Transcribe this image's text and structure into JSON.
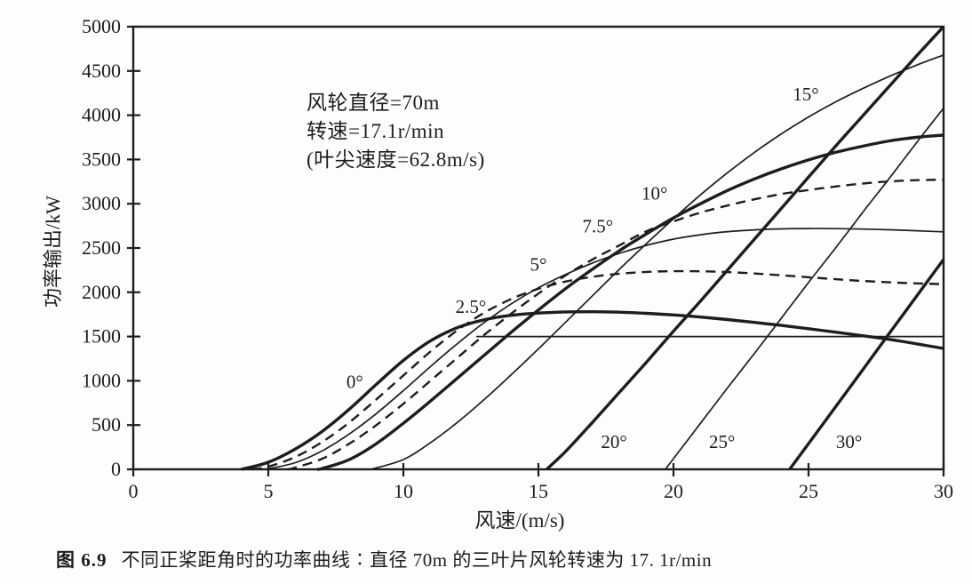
{
  "figure": {
    "caption_label": "图 6.9",
    "caption_text": "不同正桨距角时的功率曲线∶直径 70m 的三叶片风轮转速为 17. 1r/min"
  },
  "colors": {
    "ink": "#1d1d1d",
    "background": "#fdfdfc"
  },
  "chart_data": {
    "type": "line",
    "title": "",
    "xlabel": "风速/(m/s)",
    "ylabel": "功率输出/kW",
    "x_unit": "m/s",
    "y_unit": "kW",
    "xlim": [
      0,
      30
    ],
    "ylim": [
      0,
      5000
    ],
    "xticks": [
      0,
      5,
      10,
      15,
      20,
      25,
      30
    ],
    "yticks": [
      0,
      500,
      1000,
      1500,
      2000,
      2500,
      3000,
      3500,
      4000,
      4500,
      5000
    ],
    "grid": false,
    "legend": "none (curves labeled inline)",
    "annotation": {
      "lines": [
        "风轮直径=70m",
        "转速=17.1r/min",
        "(叶尖速度=62.8m/s)"
      ]
    },
    "rated_power_line": {
      "value_kw": 1500,
      "x_start": 12.7,
      "x_end": 30
    },
    "series": [
      {
        "name": "0°",
        "pitch_deg": 0,
        "style": "solid",
        "weight": "thick",
        "label": {
          "text": "0°",
          "x": 8.2,
          "y": 920
        },
        "points": [
          [
            4,
            0
          ],
          [
            5,
            80
          ],
          [
            6,
            230
          ],
          [
            7,
            430
          ],
          [
            8,
            680
          ],
          [
            9,
            960
          ],
          [
            10,
            1230
          ],
          [
            11,
            1450
          ],
          [
            12,
            1600
          ],
          [
            13,
            1690
          ],
          [
            14,
            1740
          ],
          [
            15,
            1765
          ],
          [
            16,
            1778
          ],
          [
            17,
            1780
          ],
          [
            18,
            1775
          ],
          [
            19,
            1762
          ],
          [
            20,
            1744
          ],
          [
            21,
            1720
          ],
          [
            22,
            1692
          ],
          [
            23,
            1660
          ],
          [
            24,
            1625
          ],
          [
            25,
            1588
          ],
          [
            26,
            1549
          ],
          [
            27,
            1509
          ],
          [
            28,
            1468
          ],
          [
            29,
            1418
          ],
          [
            30,
            1365
          ]
        ]
      },
      {
        "name": "2.5°",
        "pitch_deg": 2.5,
        "style": "dashed",
        "weight": "dashed",
        "label": {
          "text": "2.5°",
          "x": 12.5,
          "y": 1765
        },
        "points": [
          [
            4.4,
            0
          ],
          [
            5,
            30
          ],
          [
            6,
            140
          ],
          [
            7,
            310
          ],
          [
            8,
            530
          ],
          [
            9,
            790
          ],
          [
            10,
            1060
          ],
          [
            11,
            1330
          ],
          [
            12,
            1570
          ],
          [
            13,
            1770
          ],
          [
            14,
            1925
          ],
          [
            15,
            2040
          ],
          [
            16,
            2120
          ],
          [
            17,
            2175
          ],
          [
            18,
            2210
          ],
          [
            19,
            2230
          ],
          [
            20,
            2238
          ],
          [
            21,
            2237
          ],
          [
            22,
            2228
          ],
          [
            23,
            2212
          ],
          [
            24,
            2192
          ],
          [
            25,
            2170
          ],
          [
            26,
            2148
          ],
          [
            27,
            2128
          ],
          [
            28,
            2112
          ],
          [
            29,
            2100
          ],
          [
            30,
            2092
          ]
        ]
      },
      {
        "name": "5°",
        "pitch_deg": 5,
        "style": "solid",
        "weight": "thin",
        "label": {
          "text": "5°",
          "x": 15.0,
          "y": 2245
        },
        "points": [
          [
            4.9,
            0
          ],
          [
            6,
            75
          ],
          [
            7,
            210
          ],
          [
            8,
            400
          ],
          [
            9,
            630
          ],
          [
            10,
            890
          ],
          [
            11,
            1160
          ],
          [
            12,
            1420
          ],
          [
            13,
            1660
          ],
          [
            14,
            1870
          ],
          [
            15,
            2050
          ],
          [
            16,
            2200
          ],
          [
            17,
            2330
          ],
          [
            18,
            2440
          ],
          [
            19,
            2530
          ],
          [
            20,
            2600
          ],
          [
            21,
            2650
          ],
          [
            22,
            2685
          ],
          [
            23,
            2705
          ],
          [
            24,
            2716
          ],
          [
            25,
            2720
          ],
          [
            26,
            2719
          ],
          [
            27,
            2714
          ],
          [
            28,
            2706
          ],
          [
            29,
            2695
          ],
          [
            30,
            2683
          ]
        ]
      },
      {
        "name": "7.5°",
        "pitch_deg": 7.5,
        "style": "dashed",
        "weight": "dashed",
        "label": {
          "text": "7.5°",
          "x": 17.2,
          "y": 2675
        },
        "points": [
          [
            5.7,
            0
          ],
          [
            6,
            20
          ],
          [
            7,
            120
          ],
          [
            8,
            290
          ],
          [
            9,
            500
          ],
          [
            10,
            740
          ],
          [
            11,
            1000
          ],
          [
            12,
            1260
          ],
          [
            13,
            1520
          ],
          [
            14,
            1760
          ],
          [
            15,
            1985
          ],
          [
            16,
            2190
          ],
          [
            17,
            2370
          ],
          [
            18,
            2530
          ],
          [
            19,
            2690
          ],
          [
            20,
            2800
          ],
          [
            21,
            2900
          ],
          [
            22,
            2980
          ],
          [
            23,
            3050
          ],
          [
            24,
            3110
          ],
          [
            25,
            3155
          ],
          [
            26,
            3195
          ],
          [
            27,
            3228
          ],
          [
            28,
            3252
          ],
          [
            29,
            3266
          ],
          [
            30,
            3272
          ]
        ]
      },
      {
        "name": "10°",
        "pitch_deg": 10,
        "style": "solid",
        "weight": "thick",
        "label": {
          "text": "10°",
          "x": 19.3,
          "y": 3045
        },
        "points": [
          [
            6.8,
            0
          ],
          [
            7,
            10
          ],
          [
            8,
            110
          ],
          [
            9,
            290
          ],
          [
            10,
            520
          ],
          [
            11,
            770
          ],
          [
            12,
            1030
          ],
          [
            13,
            1290
          ],
          [
            14,
            1550
          ],
          [
            15,
            1800
          ],
          [
            16,
            2040
          ],
          [
            17,
            2260
          ],
          [
            18,
            2470
          ],
          [
            19,
            2660
          ],
          [
            20,
            2840
          ],
          [
            21,
            3000
          ],
          [
            22,
            3150
          ],
          [
            23,
            3280
          ],
          [
            24,
            3395
          ],
          [
            25,
            3495
          ],
          [
            26,
            3580
          ],
          [
            27,
            3650
          ],
          [
            28,
            3710
          ],
          [
            29,
            3750
          ],
          [
            30,
            3775
          ]
        ]
      },
      {
        "name": "15°",
        "pitch_deg": 15,
        "style": "solid",
        "weight": "thin",
        "label": {
          "text": "15°",
          "x": 24.9,
          "y": 4165
        },
        "points": [
          [
            8.8,
            0
          ],
          [
            10,
            110
          ],
          [
            11,
            300
          ],
          [
            12,
            530
          ],
          [
            13,
            790
          ],
          [
            14,
            1070
          ],
          [
            15,
            1360
          ],
          [
            16,
            1660
          ],
          [
            17,
            1960
          ],
          [
            18,
            2260
          ],
          [
            19,
            2550
          ],
          [
            20,
            2830
          ],
          [
            21,
            3100
          ],
          [
            22,
            3350
          ],
          [
            23,
            3580
          ],
          [
            24,
            3790
          ],
          [
            25,
            3980
          ],
          [
            26,
            4150
          ],
          [
            27,
            4300
          ],
          [
            28,
            4440
          ],
          [
            29,
            4565
          ],
          [
            30,
            4680
          ]
        ]
      },
      {
        "name": "20°",
        "pitch_deg": 20,
        "style": "solid",
        "weight": "thick",
        "label": {
          "text": "20°",
          "x": 17.8,
          "y": 240
        },
        "points": [
          [
            15.3,
            0
          ],
          [
            16,
            200
          ],
          [
            17,
            530
          ],
          [
            18,
            870
          ],
          [
            19,
            1210
          ],
          [
            20,
            1560
          ],
          [
            21,
            1900
          ],
          [
            22,
            2250
          ],
          [
            23,
            2600
          ],
          [
            24,
            2950
          ],
          [
            25,
            3300
          ],
          [
            26,
            3650
          ],
          [
            27,
            3990
          ],
          [
            28,
            4330
          ],
          [
            29,
            4670
          ],
          [
            30,
            5000
          ]
        ]
      },
      {
        "name": "25°",
        "pitch_deg": 25,
        "style": "solid",
        "weight": "thin",
        "label": {
          "text": "25°",
          "x": 21.8,
          "y": 240
        },
        "points": [
          [
            19.7,
            0
          ],
          [
            20,
            120
          ],
          [
            21,
            520
          ],
          [
            22,
            920
          ],
          [
            23,
            1310
          ],
          [
            24,
            1710
          ],
          [
            25,
            2110
          ],
          [
            26,
            2500
          ],
          [
            27,
            2900
          ],
          [
            28,
            3290
          ],
          [
            29,
            3690
          ],
          [
            30,
            4080
          ]
        ]
      },
      {
        "name": "30°",
        "pitch_deg": 30,
        "style": "solid",
        "weight": "thick",
        "label": {
          "text": "30°",
          "x": 26.5,
          "y": 240
        },
        "points": [
          [
            24.3,
            0
          ],
          [
            25,
            290
          ],
          [
            26,
            705
          ],
          [
            27,
            1120
          ],
          [
            28,
            1540
          ],
          [
            29,
            1955
          ],
          [
            30,
            2370
          ]
        ]
      }
    ]
  }
}
